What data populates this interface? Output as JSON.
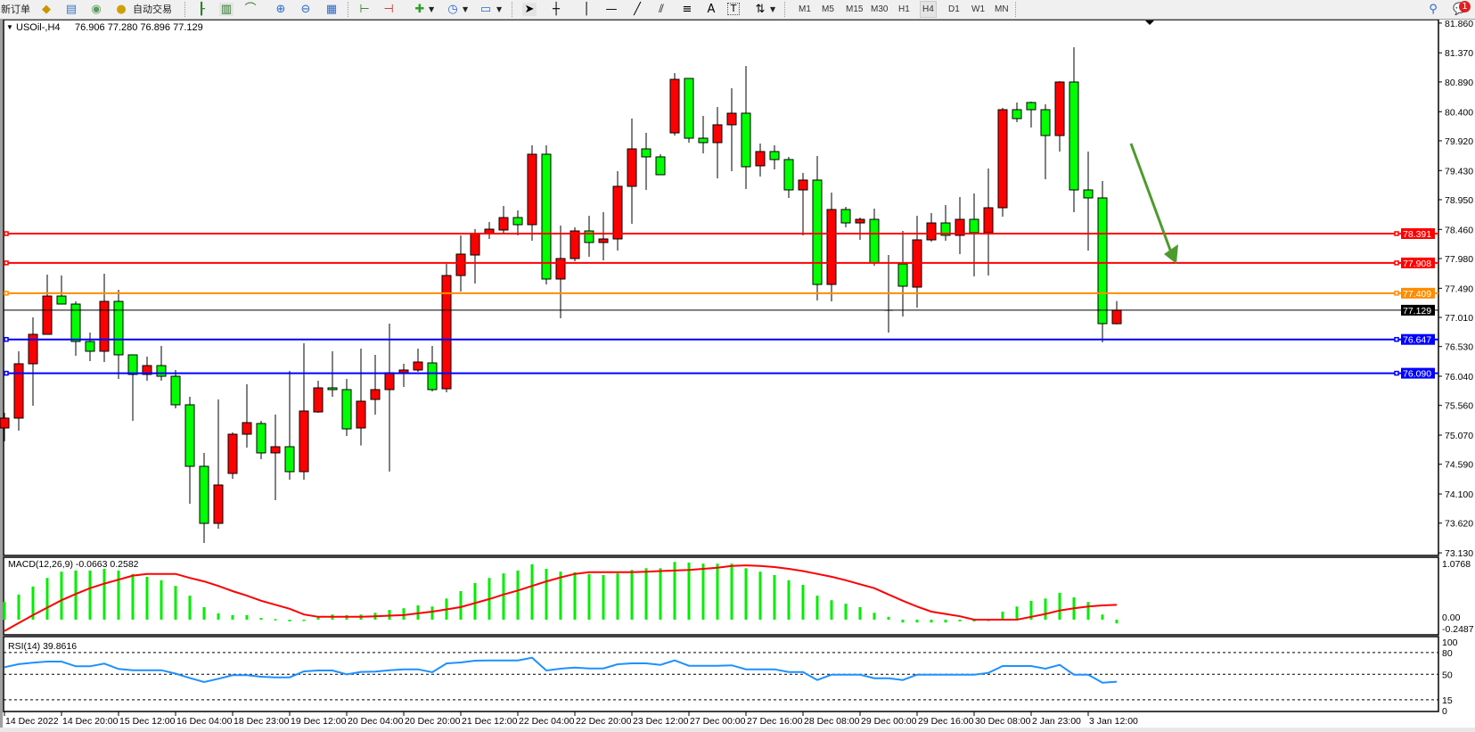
{
  "toolbar": {
    "new_order_label": "新订单",
    "auto_trading_label": "自动交易",
    "icons": [
      "chart-folder-icon",
      "market-watch-icon",
      "signals-icon",
      "auto-trading-icon",
      "bar-chart-icon",
      "candlestick-icon",
      "line-chart-icon",
      "zoom-in-icon",
      "zoom-out-icon",
      "tile-windows-icon",
      "chart-shift-icon",
      "autoscroll-icon",
      "indicators-icon",
      "periods-icon",
      "templates-icon",
      "cursor-icon",
      "crosshair-icon",
      "vertical-line-icon",
      "horizontal-line-icon",
      "trendline-icon",
      "equidistant-channel-icon",
      "fibonacci-icon",
      "text-icon",
      "text-label-icon",
      "arrows-icon"
    ],
    "text_tool": "A",
    "label_tool": "T",
    "timeframes": [
      "M1",
      "M5",
      "M15",
      "M30",
      "H1",
      "H4",
      "D1",
      "W1",
      "MN"
    ],
    "active_timeframe": "H4",
    "notification_count": "1"
  },
  "chart": {
    "symbol_label": "USOil-,H4",
    "ohlc_label": "76.906 77.280 76.896 77.129",
    "colors": {
      "bull": "#ff0000",
      "bear": "#00ff00",
      "doji": "#000000",
      "macd_hist": "#00ee00",
      "macd_signal": "#ff0000",
      "rsi": "#1e90ff",
      "arrow": "#4f9a2e"
    }
  },
  "chart_data": [
    {
      "type": "candlestick",
      "symbol": "USOil-",
      "timeframe": "H4",
      "ylim": [
        73.13,
        81.86
      ],
      "price_ticks": [
        "81.860",
        "81.370",
        "80.890",
        "80.400",
        "79.920",
        "79.430",
        "78.950",
        "78.460",
        "77.980",
        "77.490",
        "77.010",
        "76.530",
        "76.040",
        "75.560",
        "75.070",
        "74.590",
        "74.100",
        "73.620",
        "73.130"
      ],
      "time_ticks": [
        "14 Dec 2022",
        "14 Dec 20:00",
        "15 Dec 12:00",
        "16 Dec 04:00",
        "18 Dec 23:00",
        "19 Dec 12:00",
        "20 Dec 04:00",
        "20 Dec 20:00",
        "21 Dec 12:00",
        "22 Dec 04:00",
        "22 Dec 20:00",
        "23 Dec 12:00",
        "27 Dec 00:00",
        "27 Dec 16:00",
        "28 Dec 08:00",
        "29 Dec 00:00",
        "29 Dec 16:00",
        "30 Dec 08:00",
        "2 Jan 23:00",
        "3 Jan 12:00"
      ],
      "ohlc": [
        [
          75.188,
          75.438,
          74.968,
          75.35
        ],
        [
          75.35,
          76.452,
          75.144,
          76.246
        ],
        [
          76.246,
          77.01,
          75.555,
          76.731
        ],
        [
          76.731,
          77.715,
          76.731,
          77.362
        ],
        [
          77.362,
          77.7,
          77.23,
          77.23
        ],
        [
          77.23,
          77.274,
          76.378,
          76.613
        ],
        [
          76.613,
          76.76,
          76.29,
          76.452
        ],
        [
          76.452,
          77.73,
          76.275,
          77.274
        ],
        [
          77.274,
          77.465,
          75.996,
          76.393
        ],
        [
          76.393,
          76.393,
          75.305,
          76.07
        ],
        [
          76.07,
          76.363,
          75.967,
          76.216
        ],
        [
          76.216,
          76.54,
          75.967,
          76.04
        ],
        [
          76.04,
          76.143,
          75.511,
          75.57
        ],
        [
          75.57,
          75.702,
          73.939,
          74.556
        ],
        [
          74.556,
          74.777,
          73.293,
          73.616
        ],
        [
          73.616,
          75.658,
          73.528,
          74.248
        ],
        [
          74.439,
          75.114,
          74.35,
          75.085
        ],
        [
          75.085,
          75.908,
          74.865,
          75.276
        ],
        [
          75.261,
          75.305,
          74.674,
          74.777
        ],
        [
          74.777,
          75.408,
          73.998,
          74.879
        ],
        [
          74.879,
          76.128,
          74.336,
          74.468
        ],
        [
          74.468,
          76.584,
          74.336,
          75.467
        ],
        [
          75.452,
          75.967,
          75.438,
          75.849
        ],
        [
          75.849,
          76.452,
          75.702,
          75.82
        ],
        [
          75.82,
          75.996,
          75.056,
          75.173
        ],
        [
          75.188,
          76.496,
          74.9,
          75.629
        ],
        [
          75.658,
          76.393,
          75.408,
          75.82
        ],
        [
          75.82,
          76.907,
          74.47,
          76.099
        ],
        [
          76.099,
          76.246,
          75.864,
          76.143
        ],
        [
          76.143,
          76.496,
          76.114,
          76.275
        ],
        [
          76.26,
          76.54,
          75.79,
          75.82
        ],
        [
          75.834,
          77.891,
          75.776,
          77.7
        ],
        [
          77.7,
          78.362,
          77.436,
          78.053
        ],
        [
          78.038,
          78.464,
          77.568,
          78.391
        ],
        [
          78.391,
          78.582,
          78.303,
          78.464
        ],
        [
          78.45,
          78.846,
          78.406,
          78.655
        ],
        [
          78.655,
          78.773,
          78.362,
          78.538
        ],
        [
          78.538,
          79.846,
          78.273,
          79.699
        ],
        [
          79.699,
          79.846,
          77.553,
          77.642
        ],
        [
          77.642,
          78.523,
          76.995,
          77.98
        ],
        [
          77.98,
          78.494,
          77.936,
          78.435
        ],
        [
          78.435,
          78.685,
          78.009,
          78.244
        ],
        [
          78.244,
          78.744,
          77.95,
          78.303
        ],
        [
          78.303,
          79.42,
          78.112,
          79.17
        ],
        [
          79.17,
          80.286,
          78.553,
          79.787
        ],
        [
          79.787,
          80.051,
          79.111,
          79.655
        ],
        [
          79.655,
          79.699,
          79.361,
          79.361
        ],
        [
          80.051,
          81.036,
          80.007,
          80.933
        ],
        [
          80.948,
          80.948,
          79.89,
          79.963
        ],
        [
          79.963,
          80.33,
          79.713,
          79.89
        ],
        [
          79.89,
          80.477,
          79.302,
          80.184
        ],
        [
          80.184,
          80.786,
          79.42,
          80.375
        ],
        [
          80.375,
          81.153,
          79.126,
          79.493
        ],
        [
          79.508,
          79.875,
          79.331,
          79.743
        ],
        [
          79.743,
          79.846,
          79.449,
          79.611
        ],
        [
          79.611,
          79.655,
          78.979,
          79.111
        ],
        [
          79.111,
          79.39,
          78.362,
          79.273
        ],
        [
          79.273,
          79.669,
          77.289,
          77.553
        ],
        [
          77.553,
          79.067,
          77.274,
          78.788
        ],
        [
          78.788,
          78.832,
          78.494,
          78.567
        ],
        [
          78.567,
          78.655,
          78.288,
          78.626
        ],
        [
          78.626,
          78.802,
          77.862,
          77.906
        ],
        [
          77.127,
          78.038,
          76.76,
          77.127
        ],
        [
          77.891,
          78.435,
          77.025,
          77.524
        ],
        [
          77.509,
          78.685,
          77.171,
          78.288
        ],
        [
          78.288,
          78.729,
          78.259,
          78.567
        ],
        [
          78.567,
          78.861,
          78.273,
          78.362
        ],
        [
          78.362,
          78.993,
          78.053,
          78.626
        ],
        [
          78.626,
          79.052,
          77.686,
          78.406
        ],
        [
          78.406,
          79.464,
          77.7,
          78.817
        ],
        [
          78.817,
          80.463,
          78.67,
          80.433
        ],
        [
          80.433,
          80.551,
          80.228,
          80.286
        ],
        [
          80.551,
          80.566,
          80.139,
          80.433
        ],
        [
          80.433,
          80.521,
          79.287,
          80.007
        ],
        [
          80.007,
          80.904,
          79.743,
          80.889
        ],
        [
          80.889,
          81.462,
          78.744,
          79.111
        ],
        [
          79.111,
          79.743,
          78.112,
          78.979
        ],
        [
          78.979,
          79.258,
          76.598,
          76.907
        ],
        [
          76.906,
          77.28,
          76.896,
          77.129
        ]
      ],
      "horizontal_lines": [
        {
          "value": 78.391,
          "label": "78.391",
          "color": "#ff0000"
        },
        {
          "value": 77.908,
          "label": "77.908",
          "color": "#ff0000"
        },
        {
          "value": 77.409,
          "label": "77.409",
          "color": "#ff8c00"
        },
        {
          "value": 76.647,
          "label": "76.647",
          "color": "#0000ff"
        },
        {
          "value": 76.09,
          "label": "76.090",
          "color": "#0000ff"
        }
      ],
      "current_price": {
        "value": 77.129,
        "label": "77.129",
        "color": "#000000"
      },
      "annotation": {
        "type": "arrow",
        "direction": "down",
        "from": {
          "candle_offset": 1,
          "price": 79.9
        },
        "to": {
          "candle_offset": 4.3,
          "price": 77.9
        }
      }
    },
    {
      "type": "bar+line",
      "title": "MACD(12,26,9) -0.0663 0.2582",
      "ylim": [
        -0.2487,
        1.0768
      ],
      "ticks": [
        "1.0768",
        "0.00",
        "-0.2487"
      ],
      "histogram": [
        0.31,
        0.44,
        0.58,
        0.73,
        0.84,
        0.86,
        0.86,
        0.89,
        0.86,
        0.8,
        0.75,
        0.69,
        0.59,
        0.42,
        0.22,
        0.11,
        0.08,
        0.08,
        0.03,
        0.01,
        -0.03,
        0.0,
        0.05,
        0.09,
        0.08,
        0.09,
        0.12,
        0.17,
        0.2,
        0.25,
        0.23,
        0.37,
        0.5,
        0.64,
        0.73,
        0.81,
        0.86,
        0.97,
        0.89,
        0.84,
        0.83,
        0.8,
        0.78,
        0.81,
        0.87,
        0.9,
        0.9,
        1.01,
        1.0,
        0.98,
        0.98,
        0.98,
        0.9,
        0.84,
        0.78,
        0.69,
        0.61,
        0.42,
        0.34,
        0.28,
        0.22,
        0.12,
        0.05,
        -0.05,
        -0.05,
        -0.05,
        -0.05,
        -0.03,
        -0.03,
        0.0,
        0.14,
        0.23,
        0.33,
        0.37,
        0.47,
        0.39,
        0.31,
        0.09,
        -0.0663
      ],
      "signal": [
        -0.2,
        -0.06,
        0.08,
        0.21,
        0.34,
        0.45,
        0.55,
        0.63,
        0.7,
        0.77,
        0.8,
        0.8,
        0.8,
        0.73,
        0.67,
        0.59,
        0.5,
        0.42,
        0.33,
        0.26,
        0.19,
        0.09,
        0.05,
        0.05,
        0.05,
        0.05,
        0.06,
        0.07,
        0.08,
        0.11,
        0.14,
        0.18,
        0.22,
        0.29,
        0.36,
        0.44,
        0.51,
        0.59,
        0.67,
        0.74,
        0.8,
        0.83,
        0.83,
        0.83,
        0.83,
        0.84,
        0.85,
        0.86,
        0.87,
        0.89,
        0.91,
        0.94,
        0.95,
        0.94,
        0.92,
        0.89,
        0.85,
        0.8,
        0.75,
        0.69,
        0.62,
        0.55,
        0.44,
        0.33,
        0.23,
        0.14,
        0.1,
        0.06,
        0.0,
        0.0,
        0.0,
        0.0,
        0.05,
        0.1,
        0.16,
        0.2,
        0.23,
        0.25,
        0.2582
      ]
    },
    {
      "type": "line",
      "title": "RSI(14) 39.8616",
      "ylim": [
        0,
        100
      ],
      "ticks": [
        "100",
        "80",
        "50",
        "15",
        "0"
      ],
      "levels": [
        80,
        50,
        15
      ],
      "values": [
        59.8,
        64,
        66,
        67.5,
        67.5,
        61,
        61,
        64.7,
        57.4,
        55.6,
        55.6,
        55.6,
        51,
        45,
        39.3,
        43.9,
        48.8,
        48.8,
        46.7,
        45.8,
        45.8,
        54,
        55.3,
        55.3,
        50,
        53.3,
        53.7,
        55.6,
        56.9,
        56.9,
        52.8,
        65,
        66.3,
        68.8,
        69.1,
        69.1,
        69.1,
        72.8,
        55.3,
        57.7,
        59.3,
        58.1,
        58.1,
        63.9,
        65.1,
        65.1,
        63,
        69.1,
        61.8,
        61.8,
        61.8,
        62.4,
        56.9,
        56.9,
        56.9,
        53.2,
        53.2,
        42.2,
        49.5,
        49.5,
        49.5,
        44.6,
        44.6,
        42.2,
        49.5,
        49.5,
        49.5,
        49.5,
        49.5,
        52,
        61.4,
        61.4,
        61.4,
        57.7,
        63,
        49.5,
        49.5,
        38.5,
        39.8616
      ]
    }
  ]
}
